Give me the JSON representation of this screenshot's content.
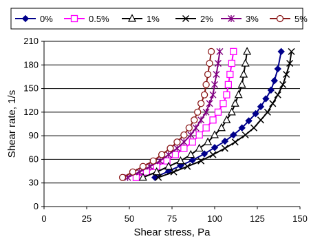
{
  "chart_data": {
    "type": "line",
    "xlabel": "Shear stress, Pa",
    "ylabel": "Shear rate, 1/s",
    "xlim": [
      0,
      150
    ],
    "ylim": [
      0,
      210
    ],
    "xticks": [
      "0",
      "25",
      "50",
      "75",
      "100",
      "125",
      "150"
    ],
    "yticks": [
      "0",
      "30",
      "60",
      "90",
      "120",
      "150",
      "180",
      "210"
    ],
    "grid": "horizontal",
    "legend_position": "top",
    "series": [
      {
        "name": "0%",
        "color": "#00008B",
        "marker": "diamond-filled",
        "points": [
          [
            65,
            37
          ],
          [
            73,
            45
          ],
          [
            80,
            52
          ],
          [
            87,
            59
          ],
          [
            94,
            67
          ],
          [
            100,
            75
          ],
          [
            106,
            83
          ],
          [
            111,
            91
          ],
          [
            116,
            100
          ],
          [
            120,
            109
          ],
          [
            124,
            118
          ],
          [
            127,
            127
          ],
          [
            130,
            137
          ],
          [
            133,
            148
          ],
          [
            135,
            160
          ],
          [
            137,
            175
          ],
          [
            139,
            197
          ]
        ]
      },
      {
        "name": "0.5%",
        "color": "#FF00FF",
        "marker": "square-open",
        "points": [
          [
            54,
            37
          ],
          [
            60,
            44
          ],
          [
            66,
            51
          ],
          [
            72,
            58
          ],
          [
            77,
            66
          ],
          [
            82,
            74
          ],
          [
            87,
            82
          ],
          [
            91,
            91
          ],
          [
            95,
            100
          ],
          [
            99,
            110
          ],
          [
            102,
            120
          ],
          [
            105,
            131
          ],
          [
            107,
            142
          ],
          [
            108,
            155
          ],
          [
            109,
            168
          ],
          [
            110,
            182
          ],
          [
            111,
            197
          ]
        ]
      },
      {
        "name": "1%",
        "color": "#000000",
        "marker": "triangle-open",
        "points": [
          [
            58,
            37
          ],
          [
            66,
            44
          ],
          [
            73,
            51
          ],
          [
            80,
            58
          ],
          [
            86,
            66
          ],
          [
            91,
            74
          ],
          [
            96,
            82
          ],
          [
            100,
            91
          ],
          [
            104,
            100
          ],
          [
            107,
            110
          ],
          [
            110,
            120
          ],
          [
            112,
            131
          ],
          [
            114,
            142
          ],
          [
            116,
            155
          ],
          [
            117,
            168
          ],
          [
            118,
            182
          ],
          [
            119,
            197
          ]
        ]
      },
      {
        "name": "2%",
        "color": "#000000",
        "marker": "x",
        "points": [
          [
            67,
            37
          ],
          [
            76,
            44
          ],
          [
            84,
            51
          ],
          [
            92,
            58
          ],
          [
            99,
            66
          ],
          [
            106,
            74
          ],
          [
            112,
            82
          ],
          [
            118,
            91
          ],
          [
            123,
            100
          ],
          [
            127,
            110
          ],
          [
            131,
            120
          ],
          [
            134,
            131
          ],
          [
            137,
            142
          ],
          [
            140,
            155
          ],
          [
            142,
            168
          ],
          [
            144,
            182
          ],
          [
            145,
            197
          ]
        ]
      },
      {
        "name": "3%",
        "color": "#800080",
        "marker": "asterisk",
        "points": [
          [
            49,
            37
          ],
          [
            56,
            44
          ],
          [
            62,
            51
          ],
          [
            68,
            58
          ],
          [
            73,
            66
          ],
          [
            78,
            74
          ],
          [
            82,
            82
          ],
          [
            86,
            91
          ],
          [
            89,
            100
          ],
          [
            92,
            110
          ],
          [
            95,
            120
          ],
          [
            97,
            131
          ],
          [
            99,
            142
          ],
          [
            100,
            155
          ],
          [
            101,
            168
          ],
          [
            102,
            182
          ],
          [
            103,
            197
          ]
        ]
      },
      {
        "name": "5%",
        "color": "#8B1A1A",
        "marker": "circle-open",
        "points": [
          [
            46,
            37
          ],
          [
            52,
            44
          ],
          [
            58,
            51
          ],
          [
            64,
            58
          ],
          [
            69,
            66
          ],
          [
            74,
            74
          ],
          [
            78,
            82
          ],
          [
            82,
            91
          ],
          [
            85,
            100
          ],
          [
            88,
            110
          ],
          [
            90,
            120
          ],
          [
            92,
            131
          ],
          [
            94,
            142
          ],
          [
            95,
            155
          ],
          [
            96,
            168
          ],
          [
            97,
            182
          ],
          [
            98,
            197
          ]
        ]
      }
    ]
  }
}
